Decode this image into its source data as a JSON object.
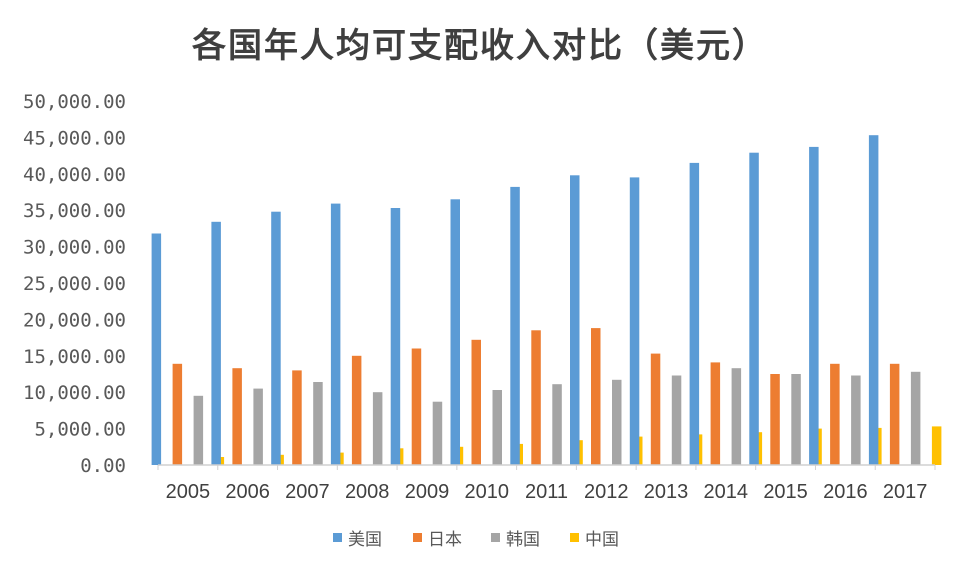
{
  "chart_data": {
    "type": "bar",
    "title": "各国年人均可支配收入对比（美元）",
    "xlabel": "",
    "ylabel": "",
    "categories": [
      "2005",
      "2006",
      "2007",
      "2008",
      "2009",
      "2010",
      "2011",
      "2012",
      "2013",
      "2014",
      "2015",
      "2016",
      "2017"
    ],
    "ylim": [
      0,
      50000
    ],
    "ytick_labels": [
      "0.00",
      "5,000.00",
      "10,000.00",
      "15,000.00",
      "20,000.00",
      "25,000.00",
      "30,000.00",
      "35,000.00",
      "40,000.00",
      "45,000.00",
      "50,000.00"
    ],
    "grid": false,
    "legend_position": "bottom",
    "series": [
      {
        "name": "美国",
        "color": "#5b9bd5",
        "values": [
          31800,
          33400,
          34800,
          35900,
          35300,
          36500,
          38200,
          39800,
          39500,
          41500,
          42900,
          43700,
          45300
        ]
      },
      {
        "name": "日本",
        "color": "#ed7d31",
        "values": [
          13900,
          13300,
          13000,
          15000,
          16000,
          17200,
          18500,
          18800,
          15300,
          14100,
          12500,
          13900,
          13900
        ]
      },
      {
        "name": "韩国",
        "color": "#a5a5a5",
        "values": [
          9500,
          10500,
          11400,
          10000,
          8700,
          10300,
          11100,
          11700,
          12300,
          13300,
          12500,
          12300,
          12800
        ]
      },
      {
        "name": "中国",
        "color": "#ffc000",
        "values": [
          1100,
          1400,
          1700,
          2300,
          2500,
          2900,
          3400,
          3900,
          4200,
          4500,
          5000,
          5100,
          5300
        ]
      }
    ]
  }
}
